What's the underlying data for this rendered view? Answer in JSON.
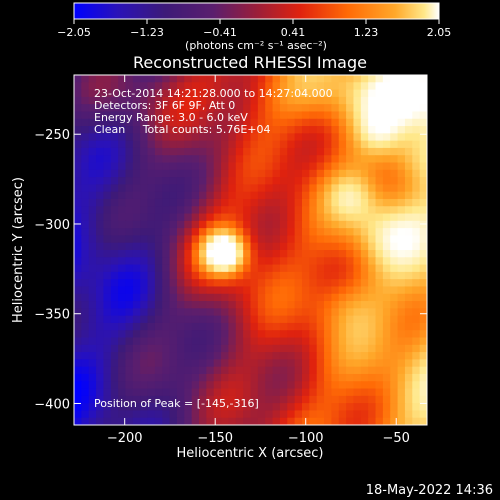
{
  "chart_data": {
    "type": "heatmap",
    "title": "Reconstructed RHESSI Image",
    "xlabel": "Heliocentric X (arcsec)",
    "ylabel": "Heliocentric Y (arcsec)",
    "xlim": [
      -228,
      -33
    ],
    "ylim": [
      -412,
      -217
    ],
    "xticks": [
      {
        "value": -200,
        "label": "−200"
      },
      {
        "value": -150,
        "label": "−150"
      },
      {
        "value": -100,
        "label": "−100"
      },
      {
        "value": -50,
        "label": "−50"
      }
    ],
    "yticks": [
      {
        "value": -250,
        "label": "−250"
      },
      {
        "value": -300,
        "label": "−300"
      },
      {
        "value": -350,
        "label": "−350"
      },
      {
        "value": -400,
        "label": "−400"
      }
    ],
    "colorbar": {
      "min": -2.05,
      "max": 2.05,
      "ticks": [
        {
          "value": -2.05,
          "label": "−2.05"
        },
        {
          "value": -1.23,
          "label": "−1.23"
        },
        {
          "value": -0.41,
          "label": "−0.41"
        },
        {
          "value": 0.41,
          "label": "0.41"
        },
        {
          "value": 1.23,
          "label": "1.23"
        },
        {
          "value": 2.05,
          "label": "2.05"
        }
      ],
      "unit_label": "(photons cm⁻² s⁻¹ asec⁻²)"
    },
    "info_lines": [
      "23-Oct-2014 14:21:28.000 to 14:27:04.000",
      "Detectors: 3F 6F 9F, Att 0",
      "Energy Range: 3.0 - 6.0 keV",
      "Clean     Total counts: 5.76E+04"
    ],
    "peak_text": "Position of Peak = [-145,-316]",
    "peak": {
      "x": -145,
      "y": -316
    },
    "colormap": [
      "#0000ff",
      "#2a12b8",
      "#3d1a78",
      "#5a1e6e",
      "#9a1e3a",
      "#e0220e",
      "#ff6a06",
      "#ffa82a",
      "#ffe88a",
      "#ffffff"
    ],
    "grid": false
  },
  "footer": {
    "timestamp": "18-May-2022 14:36"
  }
}
